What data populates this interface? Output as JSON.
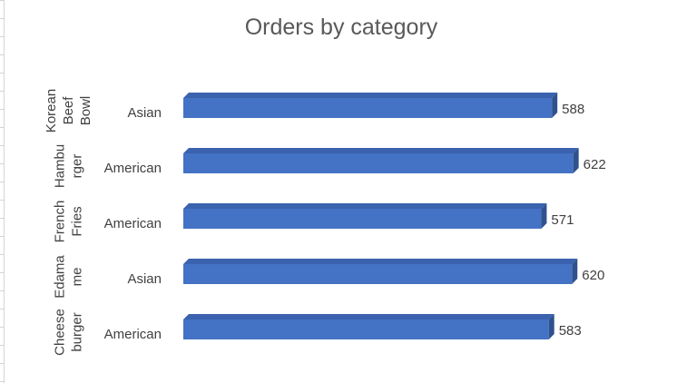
{
  "chart_data": {
    "type": "bar",
    "orientation": "horizontal",
    "style": "3d",
    "title": "Orders by category",
    "categories": [
      {
        "item": "Korean Beef Bowl",
        "item_lines": [
          "Korean",
          "Beef",
          "Bowl"
        ],
        "group": "Asian"
      },
      {
        "item": "Hamburger",
        "item_lines": [
          "Hambu",
          "rger"
        ],
        "group": "American"
      },
      {
        "item": "French Fries",
        "item_lines": [
          "French",
          "Fries"
        ],
        "group": "American"
      },
      {
        "item": "Edamame",
        "item_lines": [
          "Edama",
          "me"
        ],
        "group": "Asian"
      },
      {
        "item": "Cheeseburger",
        "item_lines": [
          "Cheese",
          "burger"
        ],
        "group": "American"
      }
    ],
    "values": [
      588,
      622,
      571,
      620,
      583
    ],
    "data_labels": [
      "588",
      "622",
      "571",
      "620",
      "583"
    ],
    "xlim": [
      0,
      650
    ],
    "grid": false,
    "legend": "none",
    "colors": {
      "bar_front": "#4472C4",
      "bar_top": "#3A62AE",
      "bar_side": "#2F528F",
      "title": "#595959",
      "labels": "#404040"
    }
  }
}
